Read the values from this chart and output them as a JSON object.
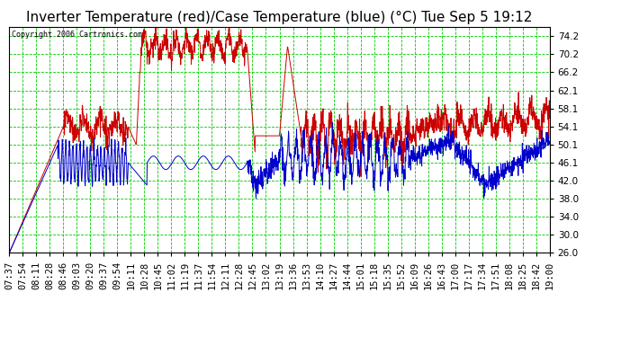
{
  "title": "Inverter Temperature (red)/Case Temperature (blue) (°C) Tue Sep 5 19:12",
  "copyright": "Copyright 2006 Cartronics.com",
  "ylabel_right_values": [
    74.2,
    70.2,
    66.2,
    62.1,
    58.1,
    54.1,
    50.1,
    46.1,
    42.0,
    38.0,
    34.0,
    30.0,
    26.0
  ],
  "ymin": 26.0,
  "ymax": 76.2,
  "background_color": "#ffffff",
  "plot_bg_color": "#ffffff",
  "grid_color": "#00cc00",
  "red_color": "#cc0000",
  "blue_color": "#0000cc",
  "title_fontsize": 11,
  "tick_fontsize": 7.5,
  "xtick_labels": [
    "07:37",
    "07:54",
    "08:11",
    "08:28",
    "08:46",
    "09:03",
    "09:20",
    "09:37",
    "09:54",
    "10:11",
    "10:28",
    "10:45",
    "11:02",
    "11:19",
    "11:37",
    "11:54",
    "12:11",
    "12:28",
    "12:45",
    "13:02",
    "13:19",
    "13:36",
    "13:53",
    "14:10",
    "14:27",
    "14:44",
    "15:01",
    "15:18",
    "15:35",
    "15:52",
    "16:09",
    "16:26",
    "16:43",
    "17:00",
    "17:17",
    "17:34",
    "17:51",
    "18:08",
    "18:25",
    "18:42",
    "19:00"
  ]
}
